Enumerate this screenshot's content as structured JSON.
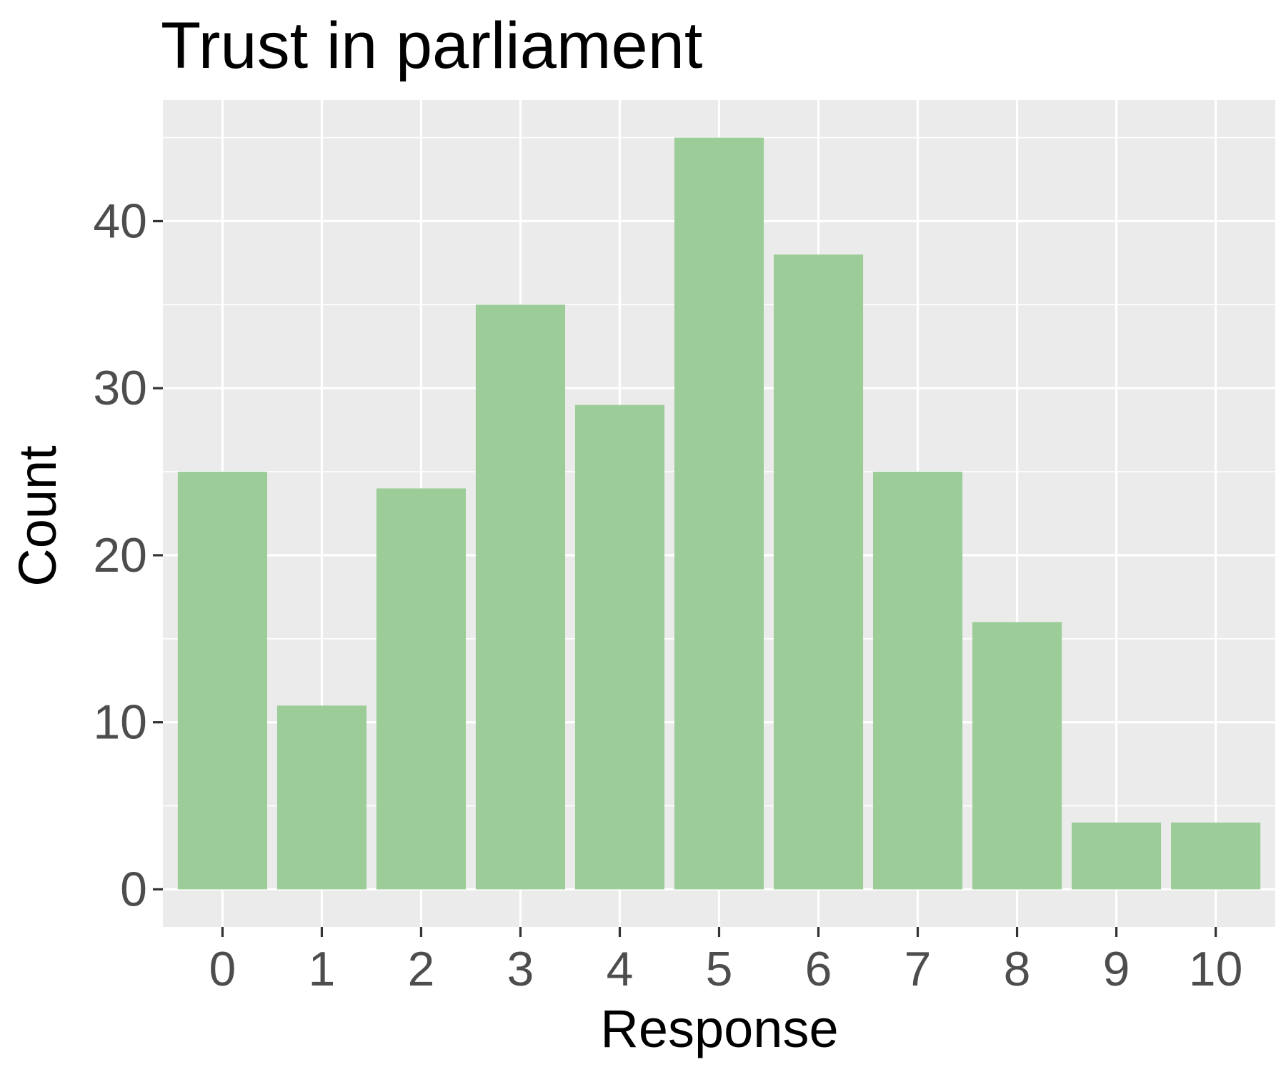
{
  "chart_data": {
    "type": "bar",
    "title": "Trust in parliament",
    "xlabel": "Response",
    "ylabel": "Count",
    "categories": [
      "0",
      "1",
      "2",
      "3",
      "4",
      "5",
      "6",
      "7",
      "8",
      "9",
      "10"
    ],
    "values": [
      25,
      11,
      24,
      35,
      29,
      45,
      38,
      25,
      16,
      4,
      4
    ],
    "ylim": [
      -2.25,
      47.25
    ],
    "yticks": [
      0,
      10,
      20,
      30,
      40
    ],
    "ytick_labels": [
      "0",
      "10",
      "20",
      "30",
      "40"
    ],
    "grid": true,
    "legend": "none",
    "colors": {
      "bar": "#9ccd98",
      "panel": "#ebebeb",
      "grid": "#ffffff",
      "tick": "#333333",
      "tick_label": "#4d4d4d",
      "title": "#000000"
    }
  }
}
